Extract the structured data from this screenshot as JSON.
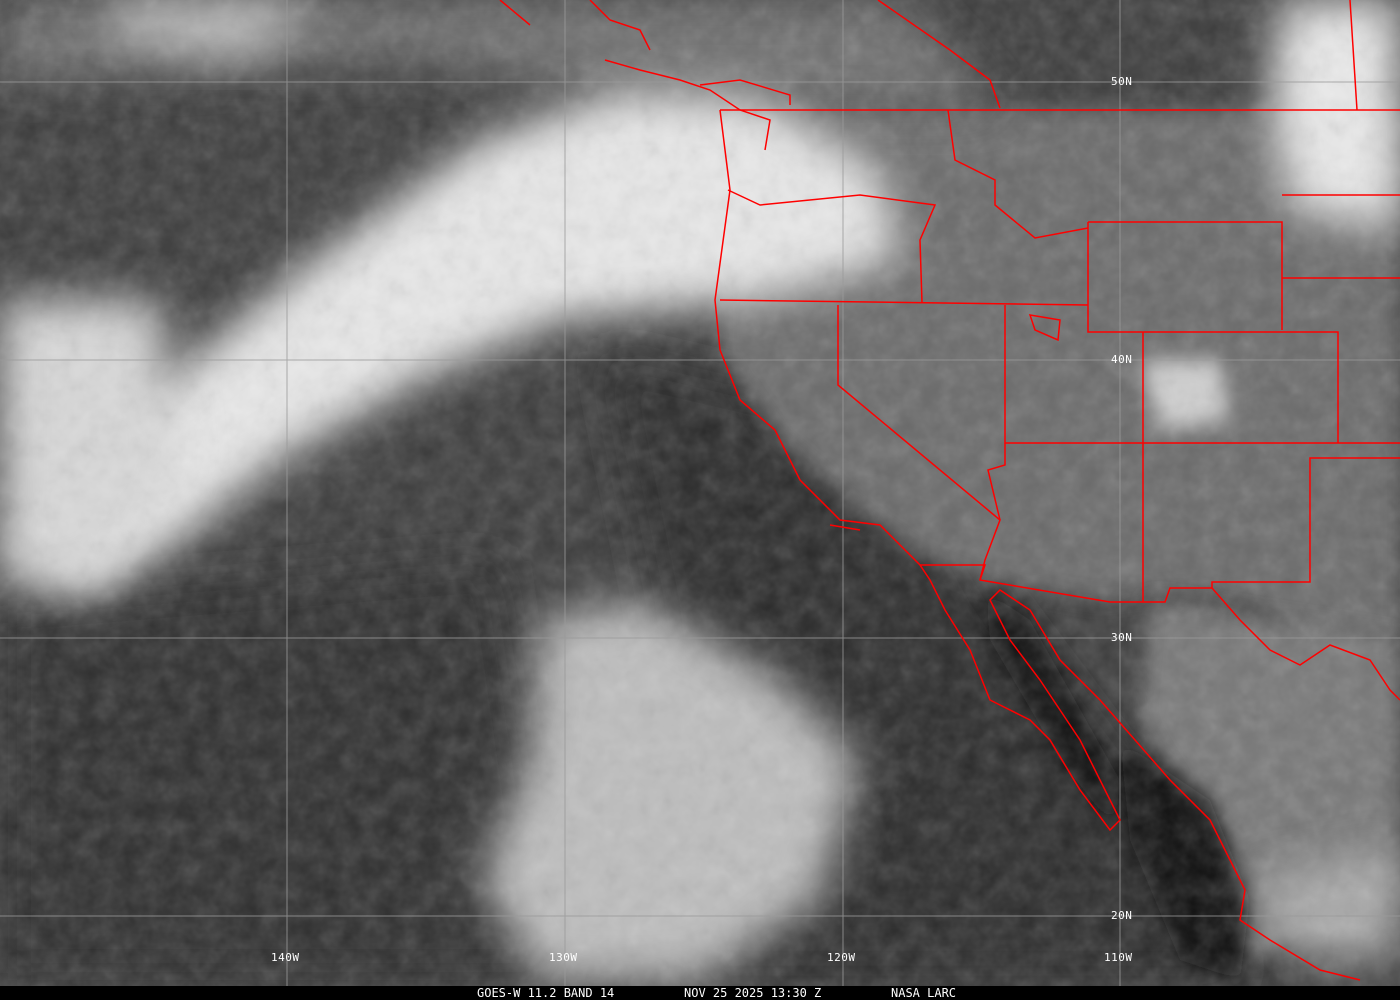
{
  "caption": {
    "product": "GOES-W 11.2 BAND 14",
    "datetime": "NOV 25 2025 13:30 Z",
    "credit": "NASA LARC"
  },
  "grid": {
    "latitudes": [
      "50N",
      "40N",
      "30N",
      "20N"
    ],
    "longitudes": [
      "140W",
      "130W",
      "120W",
      "110W"
    ]
  },
  "colors": {
    "borders": "#ff0000",
    "gridlines": "#9a9a9a",
    "labels": "#ffffff"
  }
}
